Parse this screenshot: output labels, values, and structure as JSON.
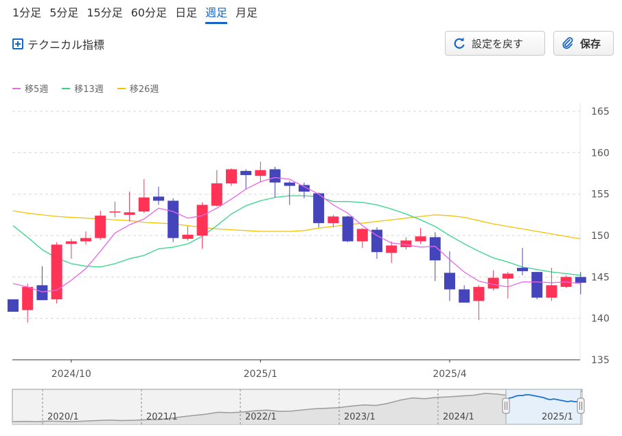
{
  "tabs": [
    {
      "label": "1分足",
      "active": false
    },
    {
      "label": "5分足",
      "active": false
    },
    {
      "label": "15分足",
      "active": false
    },
    {
      "label": "60分足",
      "active": false
    },
    {
      "label": "日足",
      "active": false
    },
    {
      "label": "週足",
      "active": true
    },
    {
      "label": "月足",
      "active": false
    }
  ],
  "technical_label": "テクニカル指標",
  "buttons": {
    "reset_label": "設定を戻す",
    "save_label": "保存"
  },
  "colors": {
    "accent": "#1664c3",
    "up": "#ff3355",
    "down": "#4444bb",
    "ma5": "#e868e8",
    "ma13": "#33d688",
    "ma26": "#f5c200"
  },
  "chart_data": {
    "type": "candlestick",
    "legend": [
      {
        "name": "移5週",
        "color": "#e868e8"
      },
      {
        "name": "移13週",
        "color": "#33d688"
      },
      {
        "name": "移26週",
        "color": "#f5c200"
      }
    ],
    "y_ticks": [
      135,
      140,
      145,
      150,
      155,
      160,
      165
    ],
    "ylim": [
      135,
      166
    ],
    "grid": true,
    "x_ticks": [
      {
        "label": "2024/10",
        "index": 4
      },
      {
        "label": "2025/1",
        "index": 17
      },
      {
        "label": "2025/4",
        "index": 30
      }
    ],
    "candles": [
      [
        142.3,
        142.3,
        140.8,
        140.8
      ],
      [
        141.0,
        144.2,
        139.5,
        143.8
      ],
      [
        144.0,
        146.3,
        142.2,
        142.2
      ],
      [
        142.3,
        149.2,
        141.8,
        148.9
      ],
      [
        149.0,
        149.6,
        147.2,
        149.3
      ],
      [
        149.3,
        150.5,
        148.9,
        149.7
      ],
      [
        149.7,
        153.0,
        149.5,
        152.4
      ],
      [
        152.9,
        154.1,
        152.2,
        152.9
      ],
      [
        152.5,
        155.3,
        151.7,
        152.8
      ],
      [
        152.9,
        156.8,
        152.7,
        154.6
      ],
      [
        154.7,
        155.9,
        153.7,
        154.2
      ],
      [
        154.2,
        154.5,
        149.2,
        149.7
      ],
      [
        149.6,
        151.1,
        149.4,
        150.1
      ],
      [
        150.0,
        154.0,
        148.4,
        153.7
      ],
      [
        153.6,
        157.9,
        153.5,
        156.3
      ],
      [
        156.3,
        158.1,
        156.0,
        158.0
      ],
      [
        157.8,
        158.0,
        155.6,
        157.3
      ],
      [
        157.2,
        158.9,
        156.4,
        157.9
      ],
      [
        158.0,
        158.3,
        154.6,
        156.4
      ],
      [
        156.4,
        156.6,
        153.7,
        156.0
      ],
      [
        156.1,
        156.4,
        154.5,
        155.3
      ],
      [
        155.1,
        155.2,
        151.0,
        151.5
      ],
      [
        151.5,
        152.5,
        151.0,
        152.3
      ],
      [
        152.3,
        152.4,
        149.2,
        149.3
      ],
      [
        149.3,
        150.9,
        148.5,
        150.8
      ],
      [
        150.7,
        151.0,
        147.2,
        148.0
      ],
      [
        147.9,
        149.3,
        146.7,
        148.8
      ],
      [
        148.6,
        149.8,
        148.3,
        149.4
      ],
      [
        149.3,
        150.9,
        149.0,
        149.9
      ],
      [
        149.8,
        150.4,
        144.5,
        147.0
      ],
      [
        145.5,
        148.1,
        142.1,
        143.5
      ],
      [
        143.5,
        144.0,
        142.1,
        141.9
      ],
      [
        142.1,
        144.0,
        139.8,
        143.8
      ],
      [
        143.6,
        145.8,
        143.4,
        144.9
      ],
      [
        144.8,
        145.6,
        142.4,
        145.4
      ],
      [
        146.1,
        148.5,
        145.2,
        145.7
      ],
      [
        145.6,
        145.6,
        142.3,
        142.5
      ],
      [
        142.5,
        146.1,
        142.1,
        144.0
      ],
      [
        143.8,
        145.2,
        143.7,
        145.0
      ],
      [
        145.0,
        145.6,
        142.9,
        144.3
      ]
    ],
    "ma5": [
      144.2,
      143.8,
      143.2,
      143.4,
      144.6,
      146.0,
      148.1,
      150.3,
      151.3,
      152.0,
      153.3,
      152.9,
      152.1,
      152.4,
      153.3,
      154.4,
      155.6,
      156.5,
      157.0,
      156.8,
      155.9,
      155.0,
      153.7,
      152.7,
      151.2,
      150.0,
      149.1,
      148.9,
      148.6,
      148.7,
      147.1,
      145.6,
      144.5,
      144.1,
      143.8,
      144.4,
      144.4,
      144.3,
      144.4,
      144.2
    ],
    "ma13": [
      151.2,
      149.8,
      148.3,
      147.3,
      146.6,
      146.3,
      146.2,
      146.6,
      147.2,
      147.6,
      148.4,
      148.6,
      149.0,
      149.9,
      151.2,
      152.6,
      153.6,
      154.2,
      154.6,
      154.8,
      154.8,
      154.7,
      154.1,
      154.1,
      154.0,
      153.7,
      153.2,
      152.6,
      151.9,
      151.1,
      150.0,
      149.0,
      148.1,
      147.3,
      146.8,
      146.2,
      145.9,
      145.6,
      145.4,
      145.2
    ],
    "ma26": [
      153.0,
      152.7,
      152.5,
      152.3,
      152.2,
      152.1,
      152.0,
      151.9,
      151.8,
      151.6,
      151.5,
      151.4,
      151.2,
      151.0,
      150.8,
      150.7,
      150.6,
      150.5,
      150.5,
      150.5,
      150.6,
      150.9,
      151.1,
      151.3,
      151.5,
      151.7,
      151.9,
      152.1,
      152.3,
      152.5,
      152.4,
      152.2,
      151.8,
      151.4,
      151.1,
      150.8,
      150.5,
      150.2,
      149.9,
      149.6
    ],
    "navigator": {
      "year_labels": [
        "2020/1",
        "2021/1",
        "2022/1",
        "2023/1",
        "2024/1",
        "2025/1"
      ],
      "series": [
        60,
        61,
        60,
        62,
        61,
        60,
        62,
        64,
        66,
        64,
        65,
        67,
        68,
        72,
        78,
        83,
        88,
        95,
        93,
        96,
        100,
        103,
        98,
        99,
        104,
        108,
        110,
        112,
        118,
        122,
        120,
        128,
        140,
        148,
        145,
        150,
        152,
        155,
        158,
        165,
        162,
        157,
        160,
        164,
        166,
        170,
        168,
        172
      ],
      "ylim": [
        50,
        180
      ],
      "window_label": "2025/1"
    }
  }
}
